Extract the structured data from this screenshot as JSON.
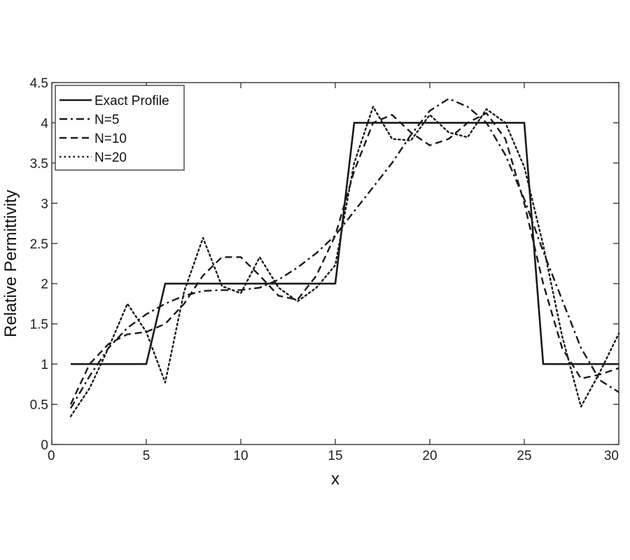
{
  "chart_data": {
    "type": "line",
    "title": "",
    "xlabel": "x",
    "ylabel": "Relative Permittivity",
    "xlim": [
      0,
      30
    ],
    "ylim": [
      0,
      4.5
    ],
    "xticks": [
      "0",
      "5",
      "10",
      "15",
      "20",
      "25",
      "30"
    ],
    "yticks": [
      "0",
      "0.5",
      "1",
      "1.5",
      "2",
      "2.5",
      "3",
      "3.5",
      "4",
      "4.5"
    ],
    "grid": false,
    "legend_position": "top-left",
    "series": [
      {
        "name": "Exact Profile",
        "style": "solid",
        "x": [
          1,
          5,
          6,
          15,
          16,
          25,
          26,
          30
        ],
        "y": [
          1,
          1,
          2,
          2,
          4,
          4,
          1,
          1
        ]
      },
      {
        "name": "N=5",
        "style": "dashdot",
        "x": [
          1,
          2,
          3,
          4,
          5,
          6,
          7,
          8,
          9,
          10,
          11,
          12,
          13,
          14,
          15,
          16,
          17,
          18,
          19,
          20,
          21,
          22,
          23,
          24,
          25,
          26,
          27,
          28,
          29,
          30
        ],
        "y": [
          0.45,
          0.85,
          1.2,
          1.45,
          1.62,
          1.75,
          1.85,
          1.91,
          1.92,
          1.92,
          1.95,
          2.05,
          2.2,
          2.38,
          2.6,
          2.9,
          3.2,
          3.5,
          3.85,
          4.15,
          4.3,
          4.2,
          4.0,
          3.6,
          3.05,
          2.4,
          1.8,
          1.2,
          0.8,
          0.65
        ]
      },
      {
        "name": "N=10",
        "style": "dashed",
        "x": [
          1,
          2,
          3,
          4,
          5,
          6,
          7,
          8,
          9,
          10,
          11,
          12,
          13,
          14,
          15,
          16,
          17,
          18,
          19,
          20,
          21,
          22,
          23,
          24,
          25,
          26,
          27,
          28,
          29,
          30
        ],
        "y": [
          0.5,
          1.0,
          1.25,
          1.37,
          1.4,
          1.5,
          1.75,
          2.1,
          2.33,
          2.33,
          2.1,
          1.85,
          1.8,
          2.1,
          2.6,
          3.4,
          4.0,
          4.1,
          3.88,
          3.72,
          3.8,
          4.0,
          4.12,
          3.8,
          3.0,
          2.0,
          1.2,
          0.82,
          0.87,
          0.95
        ]
      },
      {
        "name": "N=20",
        "style": "dotted",
        "x": [
          1,
          2,
          3,
          4,
          5,
          6,
          7,
          8,
          9,
          10,
          11,
          12,
          13,
          14,
          15,
          16,
          17,
          18,
          19,
          20,
          21,
          22,
          23,
          24,
          25,
          26,
          27,
          28,
          29,
          30
        ],
        "y": [
          0.35,
          0.7,
          1.2,
          1.75,
          1.4,
          0.77,
          1.9,
          2.57,
          1.97,
          1.88,
          2.33,
          1.95,
          1.78,
          1.95,
          2.23,
          3.5,
          4.2,
          3.8,
          3.78,
          4.1,
          3.88,
          3.82,
          4.17,
          4.0,
          3.45,
          2.48,
          1.35,
          0.47,
          0.9,
          1.38
        ]
      }
    ]
  }
}
